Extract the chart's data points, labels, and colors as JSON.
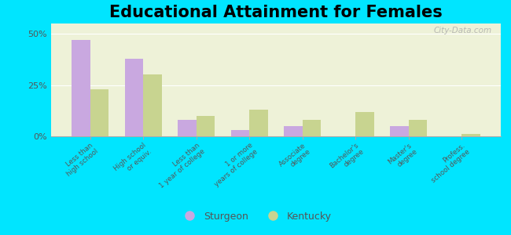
{
  "title": "Educational Attainment for Females",
  "categories": [
    "Less than\nhigh school",
    "High school\nor equiv.",
    "Less than\n1 year of college",
    "1 or more\nyears of college",
    "Associate\ndegree",
    "Bachelor's\ndegree",
    "Master's\ndegree",
    "Profess.\nschool degree"
  ],
  "sturgeon_values": [
    47,
    38,
    8,
    3,
    5,
    0,
    5,
    0
  ],
  "kentucky_values": [
    23,
    30,
    10,
    13,
    8,
    12,
    8,
    1
  ],
  "sturgeon_color": "#c9a8e0",
  "kentucky_color": "#c8d490",
  "background_color": "#eef2d8",
  "figure_bg": "#00e5ff",
  "ylim": [
    0,
    55
  ],
  "yticks": [
    0,
    25,
    50
  ],
  "ytick_labels": [
    "0%",
    "25%",
    "50%"
  ],
  "bar_width": 0.35,
  "title_fontsize": 15,
  "legend_labels": [
    "Sturgeon",
    "Kentucky"
  ],
  "watermark": "City-Data.com"
}
